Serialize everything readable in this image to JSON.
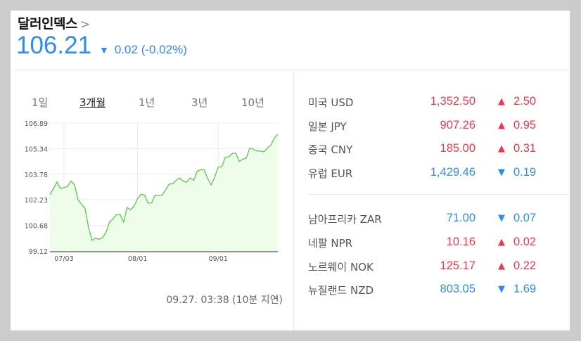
{
  "header": {
    "title": "달러인덱스",
    "chevron_icon": "chevron-right-icon",
    "price": "106.21",
    "direction": "down",
    "change": "0.02",
    "change_pct": "(-0.02%)"
  },
  "tabs": [
    {
      "label": "1일"
    },
    {
      "label": "3개월",
      "active": true
    },
    {
      "label": "1년"
    },
    {
      "label": "3년"
    },
    {
      "label": "10년"
    }
  ],
  "timestamp": "09.27. 03:38 (10분 지연)",
  "colors": {
    "up": "#f3374b",
    "down": "#2d8cf0",
    "line": "#5cc84a",
    "fill": "#eefcea"
  },
  "chart_data": {
    "type": "area",
    "ylim": [
      99.12,
      106.89
    ],
    "y_ticks": [
      "106.89",
      "105.34",
      "103.78",
      "102.23",
      "100.68",
      "99.12"
    ],
    "x_ticks": [
      "07/03",
      "08/01",
      "09/01"
    ],
    "grid": true,
    "x": [
      "06/27",
      "06/28",
      "06/29",
      "06/30",
      "07/03",
      "07/04",
      "07/05",
      "07/06",
      "07/07",
      "07/10",
      "07/11",
      "07/12",
      "07/13",
      "07/14",
      "07/17",
      "07/18",
      "07/19",
      "07/20",
      "07/21",
      "07/24",
      "07/25",
      "07/26",
      "07/27",
      "07/28",
      "07/31",
      "08/01",
      "08/02",
      "08/03",
      "08/04",
      "08/07",
      "08/08",
      "08/09",
      "08/10",
      "08/11",
      "08/14",
      "08/15",
      "08/16",
      "08/17",
      "08/18",
      "08/21",
      "08/22",
      "08/23",
      "08/24",
      "08/25",
      "08/28",
      "08/29",
      "08/30",
      "08/31",
      "09/01",
      "09/04",
      "09/05",
      "09/06",
      "09/07",
      "09/08",
      "09/11",
      "09/12",
      "09/13",
      "09/14",
      "09/15",
      "09/18",
      "09/19",
      "09/20",
      "09/21",
      "09/22",
      "09/25",
      "09/26"
    ],
    "values": [
      102.53,
      102.92,
      103.31,
      102.91,
      102.98,
      103.03,
      103.37,
      103.15,
      102.24,
      101.96,
      101.73,
      100.57,
      99.77,
      99.9,
      99.83,
      99.93,
      100.26,
      100.88,
      101.07,
      101.34,
      101.34,
      100.88,
      101.76,
      101.62,
      101.85,
      102.3,
      102.57,
      102.51,
      102.02,
      102.05,
      102.51,
      102.49,
      102.51,
      102.84,
      103.18,
      103.2,
      103.41,
      103.55,
      103.37,
      103.3,
      103.55,
      103.41,
      103.96,
      104.06,
      104.05,
      103.51,
      103.13,
      103.62,
      104.22,
      104.22,
      104.8,
      104.84,
      105.04,
      105.07,
      104.55,
      104.7,
      104.76,
      105.38,
      105.3,
      105.19,
      105.19,
      105.14,
      105.36,
      105.55,
      105.97,
      106.22
    ]
  },
  "groups": [
    [
      {
        "name": "미국 USD",
        "value": "1,352.50",
        "dir": "up",
        "change": "2.50"
      },
      {
        "name": "일본 JPY",
        "value": "907.26",
        "dir": "up",
        "change": "0.95"
      },
      {
        "name": "중국 CNY",
        "value": "185.00",
        "dir": "up",
        "change": "0.31"
      },
      {
        "name": "유럽 EUR",
        "value": "1,429.46",
        "dir": "down",
        "change": "0.19"
      }
    ],
    [
      {
        "name": "남아프리카 ZAR",
        "value": "71.00",
        "dir": "down",
        "change": "0.07"
      },
      {
        "name": "네팔 NPR",
        "value": "10.16",
        "dir": "up",
        "change": "0.02"
      },
      {
        "name": "노르웨이 NOK",
        "value": "125.17",
        "dir": "up",
        "change": "0.22"
      },
      {
        "name": "뉴질랜드 NZD",
        "value": "803.05",
        "dir": "down",
        "change": "1.69"
      }
    ]
  ]
}
